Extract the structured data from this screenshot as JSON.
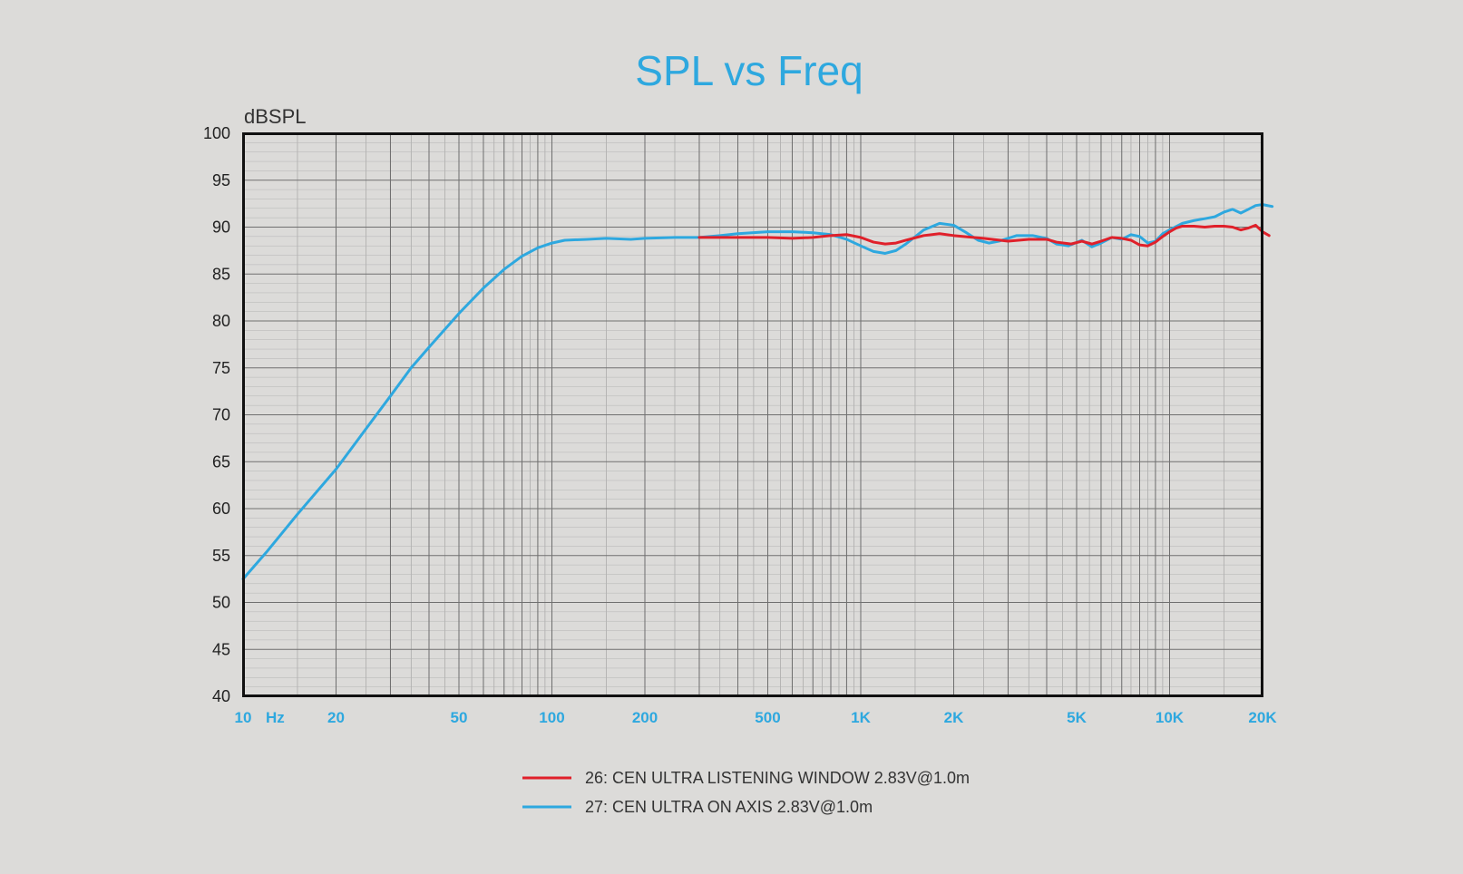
{
  "chart_data": {
    "type": "line",
    "title": "SPL vs Freq",
    "ylabel": "dBSPL",
    "y_unit": "dBSPL",
    "x_unit": "Hz",
    "x_scale": "log",
    "xlim": [
      10,
      20000
    ],
    "ylim": [
      40,
      100
    ],
    "grid": true,
    "legend_position": "bottom-center",
    "x_ticks": [
      {
        "value": 10,
        "label": "10"
      },
      {
        "value": 20,
        "label": "20"
      },
      {
        "value": 50,
        "label": "50"
      },
      {
        "value": 100,
        "label": "100"
      },
      {
        "value": 200,
        "label": "200"
      },
      {
        "value": 500,
        "label": "500"
      },
      {
        "value": 1000,
        "label": "1K"
      },
      {
        "value": 2000,
        "label": "2K"
      },
      {
        "value": 5000,
        "label": "5K"
      },
      {
        "value": 10000,
        "label": "10K"
      },
      {
        "value": 20000,
        "label": "20K"
      }
    ],
    "y_ticks": [
      40,
      45,
      50,
      55,
      60,
      65,
      70,
      75,
      80,
      85,
      90,
      95,
      100
    ],
    "series": [
      {
        "name": "26: CEN ULTRA LISTENING WINDOW 2.83V@1.0m",
        "color": "#e0202a",
        "points": [
          [
            300,
            88.9
          ],
          [
            400,
            88.9
          ],
          [
            500,
            88.9
          ],
          [
            600,
            88.8
          ],
          [
            700,
            88.9
          ],
          [
            800,
            89.1
          ],
          [
            900,
            89.2
          ],
          [
            1000,
            88.9
          ],
          [
            1100,
            88.4
          ],
          [
            1200,
            88.2
          ],
          [
            1300,
            88.3
          ],
          [
            1400,
            88.6
          ],
          [
            1600,
            89.1
          ],
          [
            1800,
            89.3
          ],
          [
            2000,
            89.1
          ],
          [
            2500,
            88.8
          ],
          [
            3000,
            88.5
          ],
          [
            3500,
            88.7
          ],
          [
            4000,
            88.7
          ],
          [
            4300,
            88.4
          ],
          [
            4800,
            88.2
          ],
          [
            5200,
            88.5
          ],
          [
            5600,
            88.2
          ],
          [
            6000,
            88.5
          ],
          [
            6500,
            88.9
          ],
          [
            7000,
            88.8
          ],
          [
            7500,
            88.6
          ],
          [
            8000,
            88.1
          ],
          [
            8500,
            88.0
          ],
          [
            9000,
            88.4
          ],
          [
            9500,
            89.0
          ],
          [
            10000,
            89.5
          ],
          [
            10500,
            89.9
          ],
          [
            11000,
            90.1
          ],
          [
            12000,
            90.1
          ],
          [
            13000,
            90.0
          ],
          [
            14000,
            90.1
          ],
          [
            15000,
            90.1
          ],
          [
            16000,
            90.0
          ],
          [
            17000,
            89.7
          ],
          [
            18000,
            89.9
          ],
          [
            19000,
            90.2
          ],
          [
            20000,
            89.5
          ],
          [
            21000,
            89.1
          ]
        ]
      },
      {
        "name": "27: CEN ULTRA ON AXIS 2.83V@1.0m",
        "color": "#2ea8df",
        "points": [
          [
            10,
            52.5
          ],
          [
            12,
            55.5
          ],
          [
            15,
            59.4
          ],
          [
            20,
            64.2
          ],
          [
            25,
            68.5
          ],
          [
            30,
            72.0
          ],
          [
            35,
            75.0
          ],
          [
            40,
            77.2
          ],
          [
            50,
            80.8
          ],
          [
            60,
            83.5
          ],
          [
            70,
            85.5
          ],
          [
            80,
            86.9
          ],
          [
            90,
            87.8
          ],
          [
            100,
            88.3
          ],
          [
            110,
            88.6
          ],
          [
            130,
            88.7
          ],
          [
            150,
            88.8
          ],
          [
            180,
            88.7
          ],
          [
            200,
            88.8
          ],
          [
            250,
            88.9
          ],
          [
            300,
            88.9
          ],
          [
            350,
            89.1
          ],
          [
            400,
            89.3
          ],
          [
            500,
            89.5
          ],
          [
            600,
            89.5
          ],
          [
            700,
            89.4
          ],
          [
            800,
            89.2
          ],
          [
            900,
            88.7
          ],
          [
            1000,
            88.0
          ],
          [
            1100,
            87.4
          ],
          [
            1200,
            87.2
          ],
          [
            1300,
            87.5
          ],
          [
            1400,
            88.2
          ],
          [
            1600,
            89.7
          ],
          [
            1800,
            90.4
          ],
          [
            2000,
            90.2
          ],
          [
            2200,
            89.4
          ],
          [
            2400,
            88.6
          ],
          [
            2600,
            88.3
          ],
          [
            2800,
            88.5
          ],
          [
            3200,
            89.1
          ],
          [
            3600,
            89.1
          ],
          [
            4000,
            88.8
          ],
          [
            4300,
            88.2
          ],
          [
            4700,
            88.0
          ],
          [
            5200,
            88.6
          ],
          [
            5600,
            87.9
          ],
          [
            6000,
            88.3
          ],
          [
            6500,
            88.9
          ],
          [
            7000,
            88.7
          ],
          [
            7500,
            89.2
          ],
          [
            8000,
            89.0
          ],
          [
            8500,
            88.3
          ],
          [
            9000,
            88.5
          ],
          [
            9500,
            89.3
          ],
          [
            10000,
            89.7
          ],
          [
            11000,
            90.4
          ],
          [
            12000,
            90.7
          ],
          [
            13000,
            90.9
          ],
          [
            14000,
            91.1
          ],
          [
            15000,
            91.6
          ],
          [
            16000,
            91.9
          ],
          [
            17000,
            91.5
          ],
          [
            18000,
            91.9
          ],
          [
            19000,
            92.3
          ],
          [
            20000,
            92.4
          ],
          [
            21500,
            92.2
          ]
        ]
      }
    ]
  }
}
